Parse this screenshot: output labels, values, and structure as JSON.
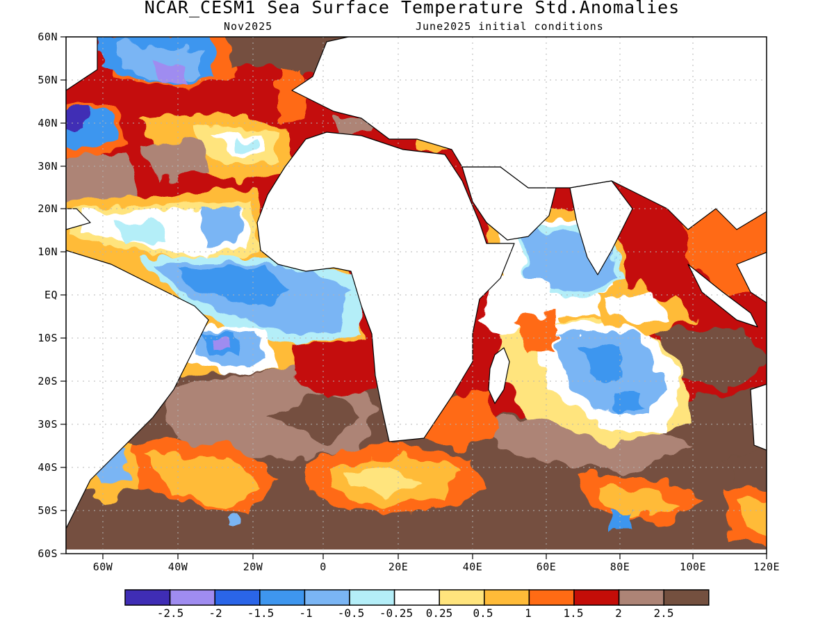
{
  "header": {
    "title": "NCAR_CESM1 Sea Surface Temperature Std.Anomalies",
    "subtitle_left": "Nov2025",
    "subtitle_right": "June2025 initial conditions"
  },
  "axes": {
    "lat_labels": [
      "60N",
      "50N",
      "40N",
      "30N",
      "20N",
      "10N",
      "EQ",
      "10S",
      "20S",
      "30S",
      "40S",
      "50S",
      "60S"
    ],
    "lon_labels": [
      "60W",
      "40W",
      "20W",
      "0",
      "20E",
      "40E",
      "60E",
      "80E",
      "100E",
      "120E"
    ]
  },
  "colorbar": {
    "labels": [
      "-2.5",
      "-2",
      "-1.5",
      "-1",
      "-0.5",
      "-0.25",
      "0.25",
      "0.5",
      "1",
      "1.5",
      "2",
      "2.5"
    ],
    "colors": [
      "#3f2db5",
      "#9f8cf0",
      "#2a65e8",
      "#3e96ef",
      "#7ab5f4",
      "#b4eef8",
      "#ffffff",
      "#ffe47d",
      "#ffbb38",
      "#ff6b14",
      "#c40d08",
      "#ad8476",
      "#74503f"
    ]
  },
  "map_colors": {
    "land": "#ffffff",
    "coast": "#000000",
    "grid": "#b4b4b4"
  }
}
